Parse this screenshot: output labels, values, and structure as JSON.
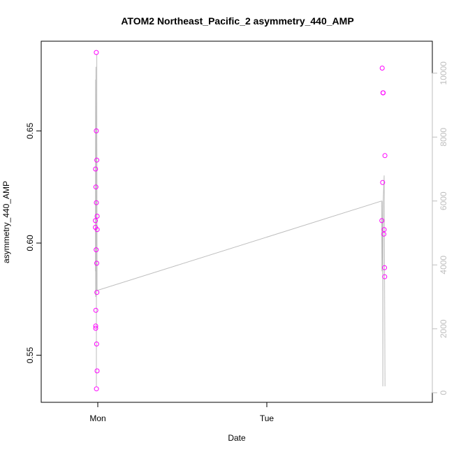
{
  "chart_data": {
    "type": "scatter",
    "title": "ATOM2 Northeast_Pacific_2 asymmetry_440_AMP",
    "xlabel": "Date",
    "ylabel": "asymmetry_440_AMP",
    "x_ticks": [
      "Mon",
      "Tue"
    ],
    "y_ticks": [
      "0.55",
      "0.60",
      "0.65"
    ],
    "y_ticks_right": [
      "0",
      "2000",
      "4000",
      "6000",
      "8000",
      "10000"
    ],
    "ylim": [
      0.529,
      0.69
    ],
    "ylim_right": [
      -300,
      11000
    ],
    "colors": {
      "points": "#ff00ff",
      "line": "#bebebe",
      "right_axis": "#bebebe"
    },
    "series": [
      {
        "kind": "points",
        "axis": "left",
        "x": [
          "Sun 19:54",
          "Sun 19:58",
          "Sun 20:11",
          "Sun 20:23",
          "Sun 20:28",
          "Sun 20:40",
          "Sun 20:49",
          "Sun 21:18",
          "Sun 21:27",
          "Sun 21:32",
          "Sun 21:39",
          "Sun 21:44",
          "Sun 22:01",
          "Sun 22:13",
          "Sun 22:18",
          "Sun 22:25",
          "Sun 22:46",
          "Sun 22:58",
          "Sun 22:59",
          "Mon 23:43",
          "Mon 23:52",
          "Tue 00:03",
          "Tue 00:10",
          "Tue 00:15",
          "Tue 00:32",
          "Tue 00:39",
          "Tue 00:49",
          "Tue 00:54",
          "Tue 00:58"
        ],
        "y": [
          0.61,
          0.607,
          0.633,
          0.563,
          0.562,
          0.57,
          0.625,
          0.597,
          0.685,
          0.65,
          0.618,
          0.535,
          0.555,
          0.591,
          0.637,
          0.578,
          0.543,
          0.612,
          0.606,
          0.61,
          0.678,
          0.627,
          0.667,
          0.667,
          0.604,
          0.606,
          0.589,
          0.585,
          0.639
        ]
      },
      {
        "kind": "line",
        "axis": "right",
        "x": [
          "Sun 19:54",
          "Sun 20:10",
          "Sun 20:21",
          "Sun 20:44",
          "Sun 21:36",
          "Sun 21:38",
          "Sun 21:45",
          "Sun 22:08",
          "Sun 22:21",
          "Sun 22:24",
          "Sun 22:30",
          "Sun 22:46",
          "Sun 22:59",
          "Mon 23:36",
          "Mon 23:45",
          "Tue 00:05",
          "Tue 00:08",
          "Tue 00:15",
          "Tue 00:40",
          "Tue 01:00"
        ],
        "y": [
          3800,
          9800,
          3000,
          10200,
          3400,
          200,
          7200,
          3200,
          10600,
          3600,
          7800,
          3200,
          3200,
          6000,
          3800,
          6000,
          200,
          6000,
          6800,
          200
        ]
      }
    ]
  }
}
